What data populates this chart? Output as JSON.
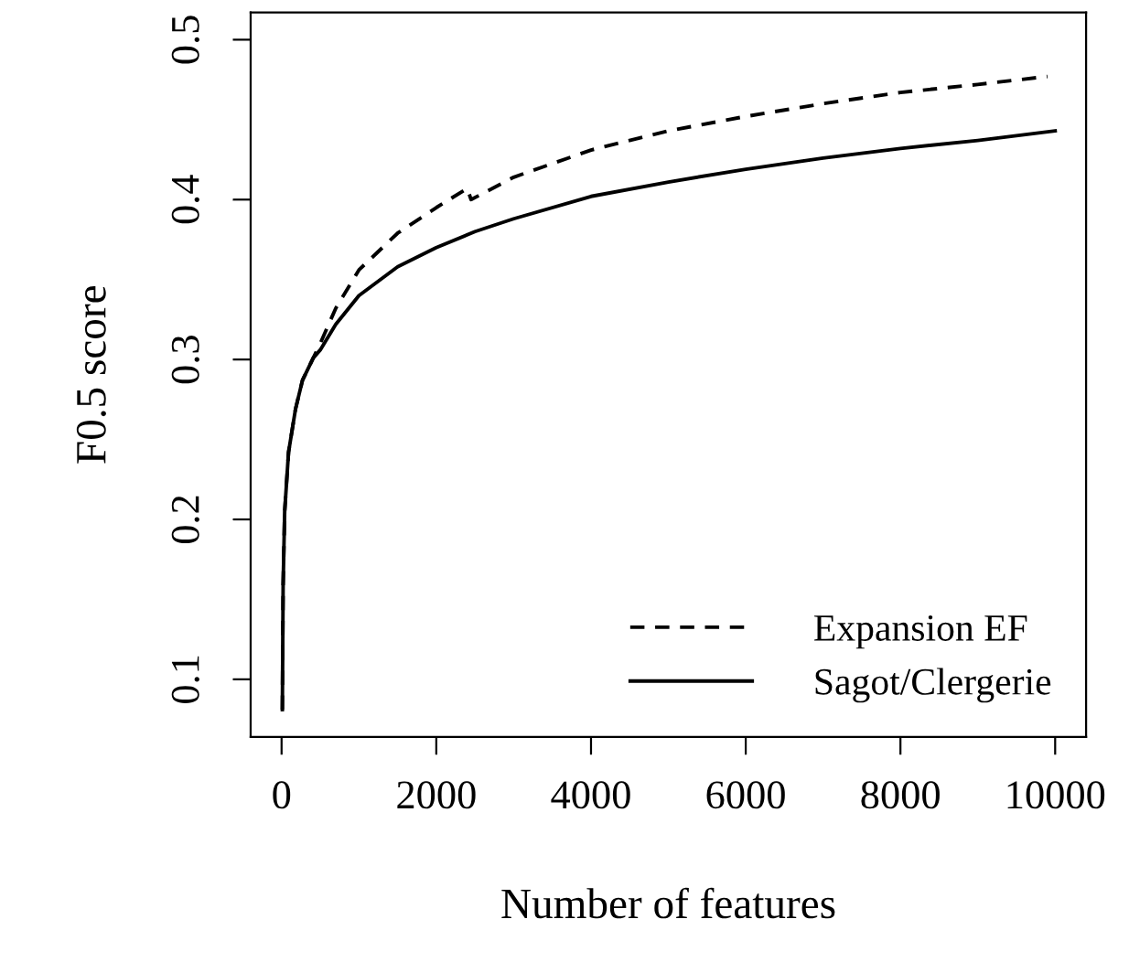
{
  "chart_data": {
    "type": "line",
    "xlabel": "Number of features",
    "ylabel": "F0.5 score",
    "xlim": [
      -400,
      10400
    ],
    "ylim": [
      0.064,
      0.517
    ],
    "xticks": [
      0,
      2000,
      4000,
      6000,
      8000,
      10000
    ],
    "yticks": [
      0.1,
      0.2,
      0.3,
      0.4,
      0.5
    ],
    "grid": false,
    "legend": "bottom right",
    "series": [
      {
        "name": "Expansion EF",
        "color": "#000000",
        "line_style": "dashed",
        "x": [
          10,
          20,
          40,
          90,
          180,
          270,
          410,
          500,
          700,
          1000,
          1500,
          2000,
          2400,
          2450,
          3000,
          4000,
          5000,
          6000,
          7000,
          8000,
          9000,
          9900
        ],
        "values": [
          0.081,
          0.159,
          0.205,
          0.242,
          0.269,
          0.287,
          0.301,
          0.31,
          0.332,
          0.356,
          0.379,
          0.395,
          0.407,
          0.4,
          0.414,
          0.431,
          0.443,
          0.452,
          0.46,
          0.467,
          0.472,
          0.477
        ]
      },
      {
        "name": "Sagot/Clergerie",
        "color": "#000000",
        "line_style": "solid",
        "x": [
          10,
          20,
          40,
          90,
          180,
          270,
          410,
          500,
          700,
          1000,
          1500,
          2000,
          2500,
          3000,
          4000,
          5000,
          6000,
          7000,
          8000,
          9000,
          10000
        ],
        "values": [
          0.081,
          0.159,
          0.205,
          0.242,
          0.269,
          0.287,
          0.301,
          0.306,
          0.322,
          0.34,
          0.358,
          0.37,
          0.38,
          0.388,
          0.402,
          0.411,
          0.419,
          0.426,
          0.432,
          0.437,
          0.443
        ]
      }
    ]
  }
}
